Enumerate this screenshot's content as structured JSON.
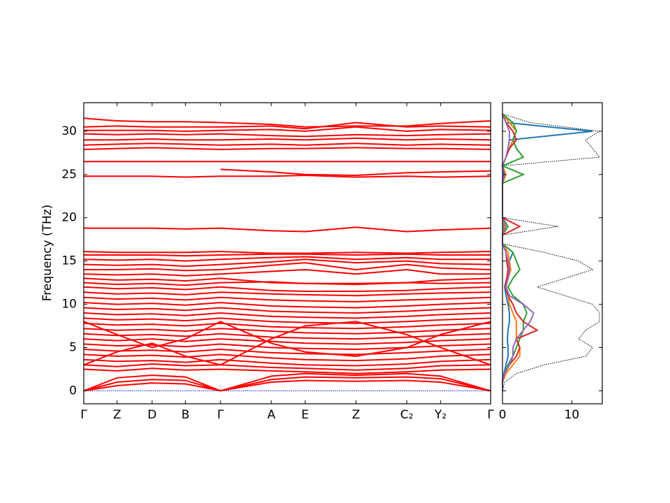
{
  "chart_data": [
    {
      "type": "line",
      "y_label": "Frequency (THz)",
      "color": "#ff0000",
      "x": [
        0,
        0.082,
        0.168,
        0.25,
        0.336,
        0.461,
        0.544,
        0.669,
        0.794,
        0.877,
        1.0
      ],
      "xlim": [
        0,
        1.0
      ],
      "xticks": [
        {
          "value": 0,
          "label": "Γ"
        },
        {
          "value": 0.082,
          "label": "Z"
        },
        {
          "value": 0.168,
          "label": "D"
        },
        {
          "value": 0.25,
          "label": "B"
        },
        {
          "value": 0.336,
          "label": "Γ"
        },
        {
          "value": 0.461,
          "label": "A"
        },
        {
          "value": 0.544,
          "label": "E"
        },
        {
          "value": 0.669,
          "label": "Z"
        },
        {
          "value": 0.794,
          "label": "C₂"
        },
        {
          "value": 0.877,
          "label": "Y₂"
        },
        {
          "value": 1.0,
          "label": "Γ"
        }
      ],
      "ylim": [
        -1.5,
        33.3
      ],
      "yticks": [
        0,
        5,
        10,
        15,
        20,
        25,
        30
      ],
      "series": [
        {
          "color": "#0000ff",
          "style": "dotted",
          "values": [
            0,
            0,
            0,
            0,
            0,
            0,
            0,
            0,
            0,
            0,
            0
          ]
        },
        {
          "values": [
            0,
            1.5,
            1.8,
            1.6,
            0,
            1.7,
            2.0,
            1.8,
            2.0,
            1.7,
            0
          ]
        },
        {
          "values": [
            0,
            1.0,
            1.3,
            1.2,
            0,
            1.3,
            1.6,
            1.5,
            1.6,
            1.4,
            0
          ]
        },
        {
          "values": [
            0,
            0.6,
            0.9,
            0.8,
            0,
            1.0,
            1.2,
            1.1,
            1.2,
            1.0,
            0
          ]
        },
        {
          "values": [
            2.5,
            2.3,
            2.6,
            2.4,
            2.5,
            2.3,
            2.2,
            2.0,
            2.2,
            2.4,
            2.5
          ]
        },
        {
          "values": [
            3.0,
            2.8,
            3.1,
            2.9,
            3.0,
            2.7,
            2.6,
            2.4,
            2.6,
            2.9,
            3.0
          ]
        },
        {
          "values": [
            3.6,
            3.4,
            3.5,
            3.3,
            3.6,
            3.2,
            3.0,
            2.9,
            3.1,
            3.4,
            3.6
          ]
        },
        {
          "values": [
            4.2,
            4.0,
            4.1,
            3.9,
            4.2,
            3.8,
            3.6,
            3.5,
            3.7,
            4.0,
            4.2
          ]
        },
        {
          "values": [
            4.8,
            4.6,
            4.7,
            4.5,
            4.8,
            4.4,
            4.3,
            4.2,
            4.4,
            4.6,
            4.8
          ]
        },
        {
          "values": [
            5.4,
            5.2,
            5.3,
            5.1,
            5.4,
            5.0,
            4.9,
            4.8,
            5.0,
            5.2,
            5.4
          ]
        },
        {
          "values": [
            6.0,
            5.8,
            6.0,
            5.7,
            6.0,
            5.7,
            5.5,
            5.4,
            5.6,
            5.8,
            6.0
          ]
        },
        {
          "values": [
            6.6,
            6.4,
            6.5,
            6.3,
            6.6,
            6.2,
            6.1,
            6.0,
            6.2,
            6.4,
            6.6
          ]
        },
        {
          "values": [
            7.2,
            7.0,
            7.1,
            6.9,
            7.2,
            6.9,
            6.7,
            6.6,
            6.8,
            7.0,
            7.2
          ]
        },
        {
          "values": [
            7.8,
            7.6,
            7.7,
            7.5,
            7.8,
            7.4,
            7.3,
            7.2,
            7.4,
            7.6,
            7.8
          ]
        },
        {
          "values": [
            8.4,
            8.2,
            8.3,
            8.1,
            8.4,
            8.0,
            7.9,
            7.8,
            8.0,
            8.2,
            8.4
          ]
        },
        {
          "values": [
            9.0,
            8.8,
            8.9,
            8.7,
            9.0,
            8.6,
            8.5,
            8.4,
            8.6,
            8.8,
            9.0
          ]
        },
        {
          "values": [
            9.6,
            9.4,
            9.5,
            9.3,
            9.6,
            9.2,
            9.1,
            9.0,
            9.2,
            9.4,
            9.6
          ]
        },
        {
          "values": [
            10.2,
            10.0,
            10.1,
            9.9,
            10.2,
            9.8,
            9.7,
            9.6,
            9.8,
            10.0,
            10.2
          ]
        },
        {
          "values": [
            10.8,
            10.6,
            10.7,
            10.5,
            10.8,
            10.5,
            10.4,
            10.3,
            10.5,
            10.6,
            10.8
          ]
        },
        {
          "values": [
            11.4,
            11.2,
            11.3,
            11.1,
            11.4,
            11.2,
            11.1,
            11.0,
            11.2,
            11.3,
            11.4
          ]
        },
        {
          "values": [
            12.0,
            11.8,
            11.9,
            11.7,
            12.0,
            11.6,
            11.5,
            11.5,
            11.6,
            11.8,
            12.0
          ]
        },
        {
          "values": [
            3.0,
            4.5,
            5.5,
            4.0,
            3.0,
            6.0,
            7.5,
            8.0,
            6.5,
            5.0,
            3.0
          ]
        },
        {
          "values": [
            8.0,
            6.5,
            5.0,
            6.0,
            8.0,
            5.5,
            4.5,
            4.0,
            5.0,
            6.5,
            8.0
          ]
        },
        {
          "values": [
            12.5,
            12.3,
            12.4,
            12.2,
            12.5,
            12.6,
            12.4,
            12.3,
            12.5,
            12.4,
            12.5
          ]
        },
        {
          "values": [
            13.0,
            12.8,
            12.9,
            12.7,
            13.0,
            12.5,
            12.4,
            12.4,
            12.5,
            12.8,
            13.0
          ]
        },
        {
          "values": [
            13.5,
            13.4,
            13.5,
            13.3,
            13.5,
            13.8,
            14.0,
            13.5,
            14.0,
            13.5,
            13.5
          ]
        },
        {
          "values": [
            14.0,
            14.0,
            14.1,
            13.9,
            14.0,
            14.5,
            14.8,
            14.0,
            14.6,
            14.2,
            14.0
          ]
        },
        {
          "values": [
            14.6,
            14.5,
            14.6,
            14.4,
            14.6,
            14.9,
            15.2,
            14.8,
            15.0,
            14.7,
            14.6
          ]
        },
        {
          "values": [
            15.2,
            15.1,
            15.2,
            15.0,
            15.2,
            15.4,
            15.5,
            15.2,
            15.4,
            15.2,
            15.2
          ]
        },
        {
          "values": [
            15.7,
            15.7,
            15.7,
            15.6,
            15.7,
            15.8,
            15.8,
            15.7,
            15.8,
            15.7,
            15.7
          ]
        },
        {
          "values": [
            16.1,
            16.0,
            16.0,
            16.0,
            16.1,
            15.9,
            15.9,
            16.0,
            15.9,
            16.0,
            16.1
          ]
        },
        {
          "values": [
            18.8,
            18.8,
            18.8,
            18.7,
            18.8,
            18.5,
            18.4,
            18.9,
            18.4,
            18.6,
            18.8
          ]
        },
        {
          "values": [
            24.8,
            24.8,
            24.8,
            24.7,
            24.8,
            24.8,
            24.9,
            24.7,
            24.8,
            24.7,
            24.8
          ]
        },
        {
          "values": [
            null,
            null,
            null,
            null,
            25.6,
            25.3,
            25.0,
            24.9,
            25.2,
            25.3,
            25.4
          ]
        },
        {
          "values": [
            26.5,
            26.5,
            26.5,
            26.5,
            26.5,
            26.5,
            26.5,
            26.5,
            26.5,
            26.5,
            26.5
          ]
        },
        {
          "values": [
            27.9,
            28.0,
            28.1,
            28.0,
            27.9,
            28.0,
            28.0,
            28.1,
            28.0,
            28.0,
            27.9
          ]
        },
        {
          "values": [
            28.4,
            28.5,
            28.6,
            28.5,
            28.4,
            28.5,
            28.4,
            28.6,
            28.4,
            28.5,
            28.4
          ]
        },
        {
          "values": [
            29.0,
            29.0,
            29.1,
            29.0,
            29.0,
            29.1,
            29.0,
            29.2,
            29.0,
            29.1,
            29.0
          ]
        },
        {
          "values": [
            29.7,
            29.6,
            29.7,
            29.6,
            29.7,
            29.5,
            29.4,
            29.6,
            29.5,
            29.6,
            29.7
          ]
        },
        {
          "values": [
            30.1,
            30.1,
            30.1,
            30.0,
            30.1,
            30.2,
            30.0,
            30.5,
            30.0,
            30.2,
            30.1
          ]
        },
        {
          "values": [
            30.5,
            30.6,
            30.5,
            30.5,
            30.5,
            30.6,
            30.3,
            31.0,
            30.5,
            30.6,
            30.5
          ]
        },
        {
          "values": [
            31.5,
            31.2,
            31.1,
            31.1,
            31.0,
            30.8,
            30.5,
            30.6,
            30.6,
            30.9,
            31.2
          ]
        }
      ]
    },
    {
      "type": "line",
      "orientation": "horizontal",
      "y": [
        0,
        1,
        2,
        3,
        4,
        5,
        6,
        7,
        8,
        9,
        10,
        11,
        12,
        13,
        14,
        15,
        16,
        17,
        18,
        19,
        20,
        21,
        22,
        23,
        24,
        25,
        26,
        27,
        28,
        29,
        30,
        31,
        32
      ],
      "xlim": [
        0,
        14.4
      ],
      "xticks": [
        0,
        10
      ],
      "ylim": [
        -1.5,
        33.3
      ],
      "yticks": [
        0,
        5,
        10,
        15,
        20,
        25,
        30
      ],
      "series": [
        {
          "color": "#000000",
          "style": "dotted",
          "values": [
            0,
            0.3,
            2,
            6,
            12,
            13,
            11,
            12,
            14,
            14,
            13,
            9,
            5,
            9,
            13,
            11,
            6,
            0,
            0,
            8,
            0,
            0,
            0,
            0,
            0,
            3,
            0,
            14,
            13,
            12,
            14,
            4,
            0
          ]
        },
        {
          "color": "#1f77b4",
          "values": [
            0,
            0,
            0.2,
            0.5,
            0.8,
            0.8,
            0.7,
            0.8,
            1,
            1,
            0.8,
            0.5,
            0.3,
            0.6,
            1,
            1,
            1.5,
            0,
            0,
            0.2,
            0,
            0,
            0,
            0,
            0,
            0.2,
            0,
            0.5,
            0.8,
            1,
            13,
            0.5,
            0
          ]
        },
        {
          "color": "#ff7f0e",
          "values": [
            0,
            0,
            0.5,
            1.5,
            2.5,
            2.5,
            2,
            2,
            2,
            1.5,
            1,
            0.8,
            0.4,
            0.8,
            1.2,
            1,
            0.8,
            0,
            0,
            0.3,
            0,
            0,
            0,
            0,
            0,
            0.5,
            0,
            0.5,
            1,
            1.5,
            2,
            1,
            0
          ]
        },
        {
          "color": "#2ca02c",
          "values": [
            0,
            0,
            0.3,
            0.8,
            1.5,
            2,
            2.5,
            3,
            3,
            3.5,
            3,
            1.5,
            0.8,
            1.5,
            2.5,
            2,
            1.5,
            0,
            0,
            0.8,
            0,
            0,
            0,
            0,
            0,
            3,
            0,
            3,
            2,
            1.5,
            2,
            1.5,
            0
          ]
        },
        {
          "color": "#d62728",
          "values": [
            0,
            0,
            0.3,
            1,
            2,
            2.5,
            2,
            5,
            3,
            2,
            1.5,
            0.8,
            0.4,
            0.6,
            0.8,
            0.6,
            0.5,
            0,
            0,
            2.5,
            0,
            0,
            0,
            0,
            0,
            0.3,
            0,
            0.5,
            1,
            2,
            1.5,
            0.5,
            0
          ]
        },
        {
          "color": "#9467bd",
          "values": [
            0,
            0,
            0.3,
            1,
            1.5,
            1.5,
            2,
            3,
            4,
            4.5,
            3,
            1,
            0.5,
            0.8,
            1,
            0.8,
            0.5,
            0,
            0,
            0.5,
            0,
            0,
            0,
            0,
            0,
            0.3,
            0,
            0.5,
            0.8,
            1,
            1,
            0.5,
            0
          ]
        }
      ]
    }
  ]
}
